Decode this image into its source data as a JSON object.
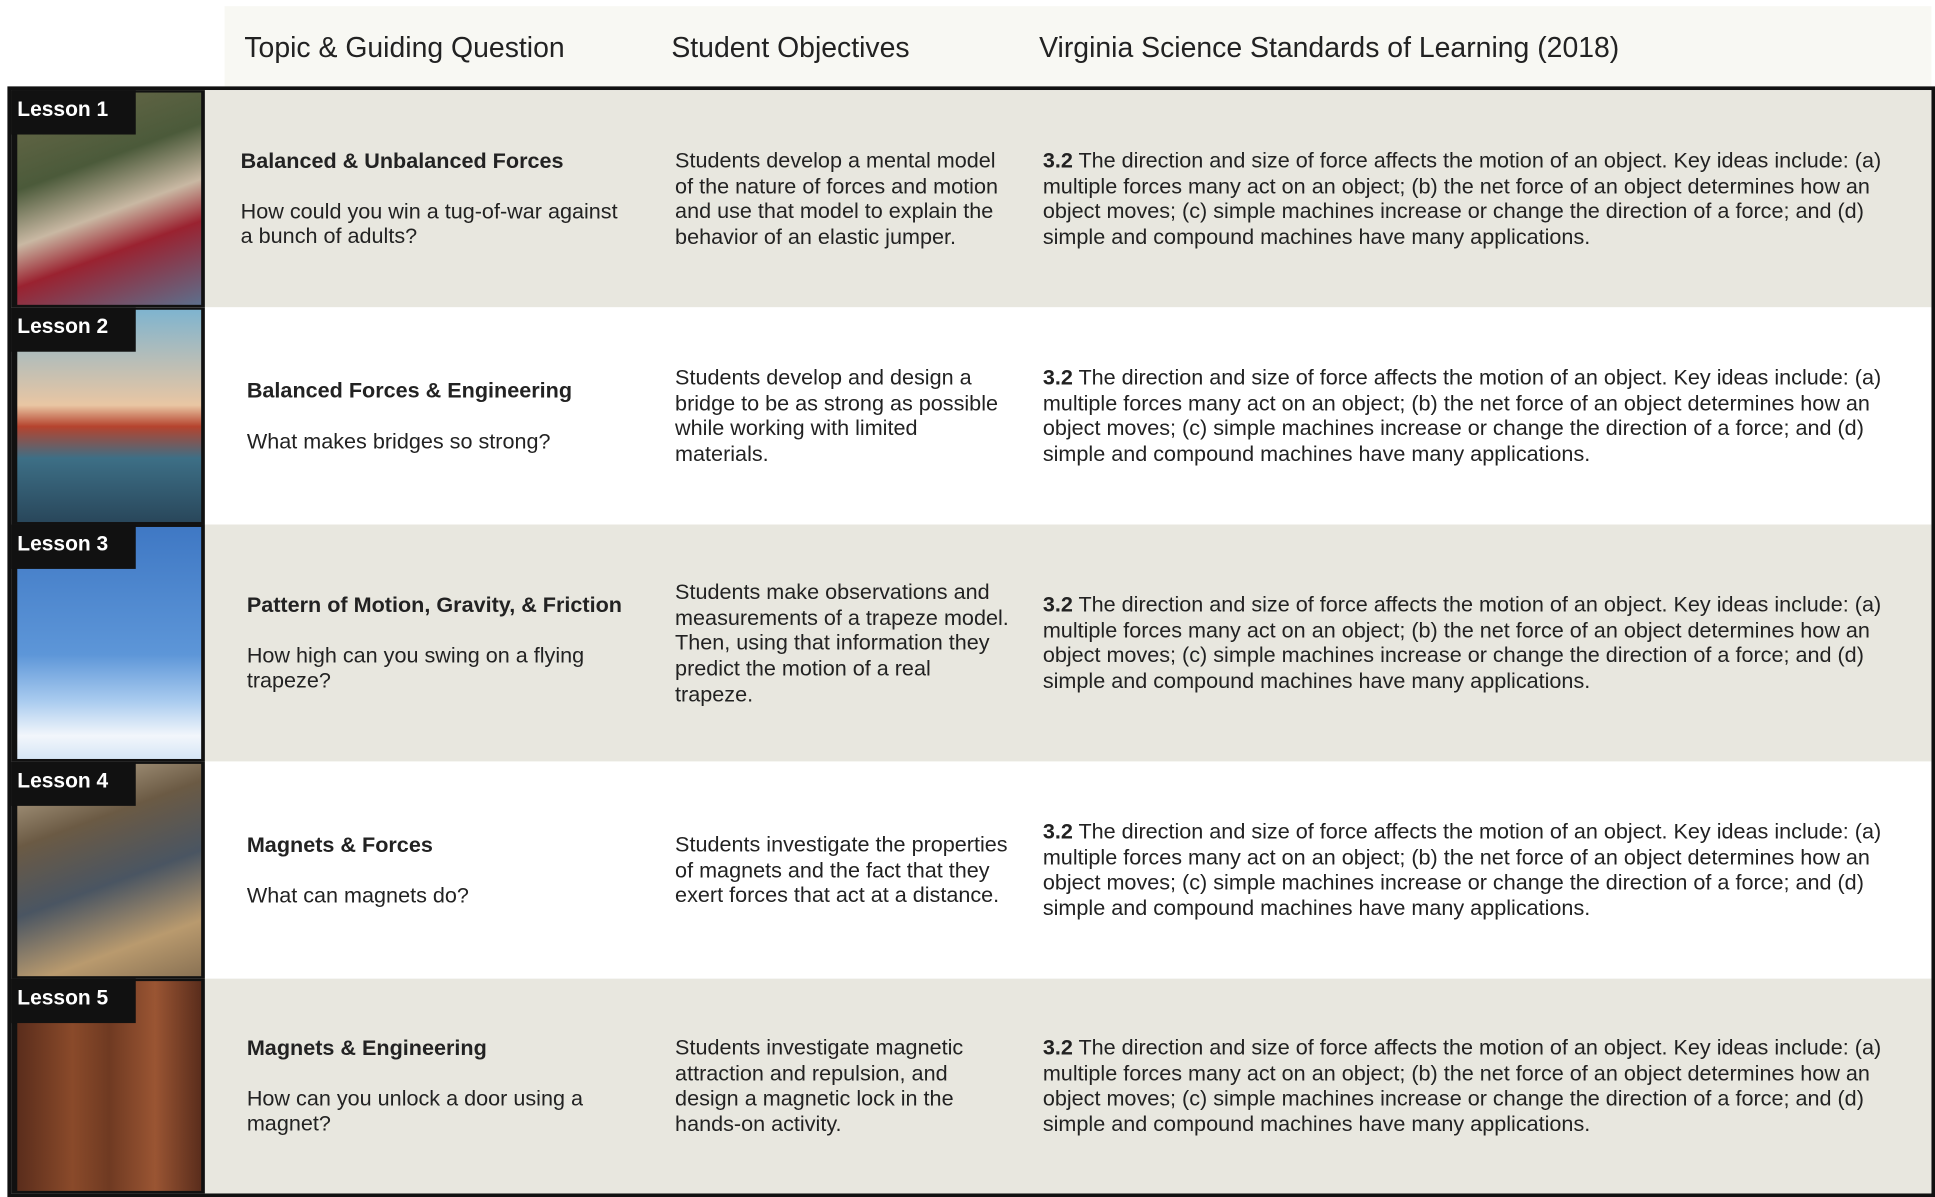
{
  "header": {
    "columns": [
      "Topic & Guiding Question",
      "Student Objectives",
      "Virginia Science Standards of Learning (2018)"
    ]
  },
  "rows": [
    {
      "lesson": "Lesson 1",
      "topic": "Balanced & Unbalanced Forces",
      "question": "How could you win a tug-of-war against a bunch of adults?",
      "objective": "Students develop a mental model of the nature of forces and motion and use that model to explain the behavior of an elastic jumper.",
      "standard_code": "3.2",
      "standard_text": "The direction and size of force affects the motion of an object. Key ideas include: (a) multiple forces many act on an object; (b) the net force of an object determines how an object moves; (c) simple machines increase or change the direction of a force; and (d) simple and compound machines have many applications."
    },
    {
      "lesson": "Lesson 2",
      "topic": "Balanced Forces & Engineering",
      "question": "What makes bridges so strong?",
      "objective": "Students develop and design a bridge to be as strong as possible while working with limited materials.",
      "standard_code": "3.2",
      "standard_text": "The direction and size of force affects the motion of an object. Key ideas include: (a) multiple forces many act on an object; (b) the net force of an object determines how an object moves; (c) simple machines increase or change the direction of a force; and (d) simple and compound machines have many applications."
    },
    {
      "lesson": "Lesson 3",
      "topic": "Pattern of Motion, Gravity, & Friction",
      "question": "How high can you swing on a flying trapeze?",
      "objective": "Students make observations and measurements of a trapeze model. Then, using that information they predict the motion of a real trapeze.",
      "standard_code": "3.2",
      "standard_text": "The direction and size of force affects the motion of an object. Key ideas include: (a) multiple forces many act on an object; (b) the net force of an object determines how an object moves; (c) simple machines increase or change the direction of a force; and (d) simple and compound machines have many applications."
    },
    {
      "lesson": "Lesson 4",
      "topic": "Magnets & Forces",
      "question": "What can magnets do?",
      "objective": "Students investigate the properties of magnets and the fact that they exert forces that act at a distance.",
      "standard_code": "3.2",
      "standard_text": "The direction and size of force affects the motion of an object. Key ideas include: (a) multiple forces many act on an object; (b) the net force of an object determines how an object moves; (c) simple machines increase or change the direction of a force; and (d) simple and compound machines have many applications."
    },
    {
      "lesson": "Lesson 5",
      "topic": "Magnets & Engineering",
      "question": "How can you unlock a door using a magnet?",
      "objective": "Students investigate magnetic attraction and repulsion, and design a magnetic lock in the hands-on activity.",
      "standard_code": "3.2",
      "standard_text": "The direction and size of force affects the motion of an object. Key ideas include: (a) multiple forces many act on an object; (b) the net force of an object determines how an object moves; (c) simple machines increase or change the direction of a force; and (d) simple and compound machines have many applications."
    }
  ]
}
